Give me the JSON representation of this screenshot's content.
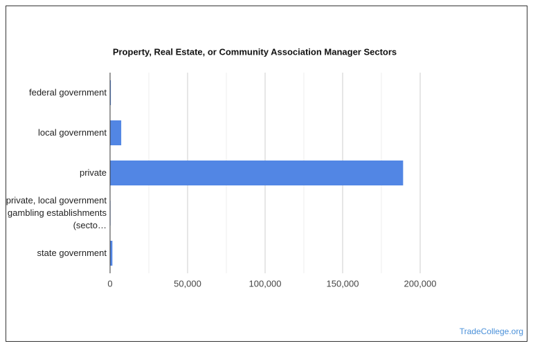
{
  "chart_data": {
    "type": "bar",
    "orientation": "horizontal",
    "title": "Property, Real Estate, or Community Association Manager Sectors",
    "categories": [
      "federal government",
      "local government",
      "private",
      "private, local government gambling establishments (secto…",
      "state government"
    ],
    "values": [
      500,
      7200,
      189000,
      300,
      1500
    ],
    "color": "#5286e4",
    "xlim": [
      0,
      200000
    ],
    "xticks": [
      0,
      {
        "value": 50000,
        "label": "50,000"
      },
      {
        "value": 100000,
        "label": "100,000"
      },
      {
        "value": 150000,
        "label": "150,000"
      },
      {
        "value": 200000,
        "label": "200,000"
      }
    ],
    "minor_xticks": [
      25000,
      75000,
      125000,
      175000
    ],
    "grid": true,
    "watermark": "TradeCollege.org"
  }
}
